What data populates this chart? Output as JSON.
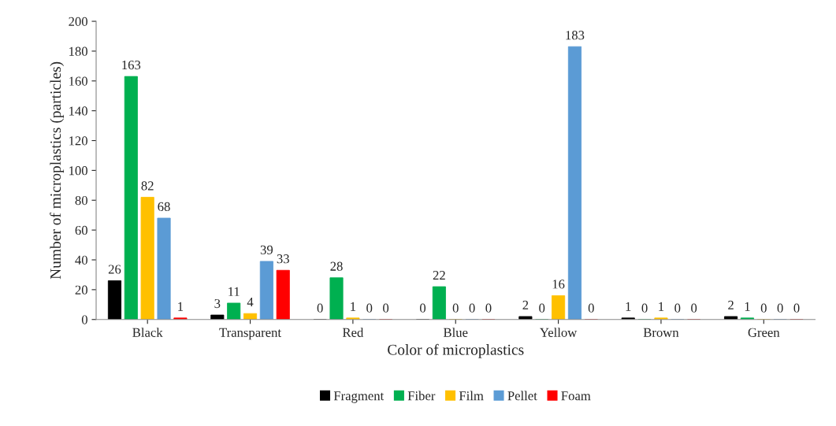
{
  "chart_data": {
    "type": "bar",
    "xlabel": "Color of microplastics",
    "ylabel": "Number of microplastics (particles)",
    "categories": [
      "Black",
      "Transparent",
      "Red",
      "Blue",
      "Yellow",
      "Brown",
      "Green"
    ],
    "series": [
      {
        "name": "Fragment",
        "color": "#000000",
        "values": [
          26,
          3,
          0,
          0,
          2,
          1,
          2
        ]
      },
      {
        "name": "Fiber",
        "color": "#00b050",
        "values": [
          163,
          11,
          28,
          22,
          0,
          0,
          1
        ]
      },
      {
        "name": "Film",
        "color": "#ffc000",
        "values": [
          82,
          4,
          1,
          0,
          16,
          1,
          0
        ]
      },
      {
        "name": "Pellet",
        "color": "#5b9bd5",
        "values": [
          68,
          39,
          0,
          0,
          183,
          0,
          0
        ]
      },
      {
        "name": "Foam",
        "color": "#ff0000",
        "values": [
          1,
          33,
          0,
          0,
          0,
          0,
          0
        ]
      }
    ],
    "ylim": [
      0,
      200
    ],
    "yticks": [
      0,
      20,
      40,
      60,
      80,
      100,
      120,
      140,
      160,
      180,
      200
    ],
    "data_labels": true,
    "legend": "bottom",
    "grid": false
  }
}
